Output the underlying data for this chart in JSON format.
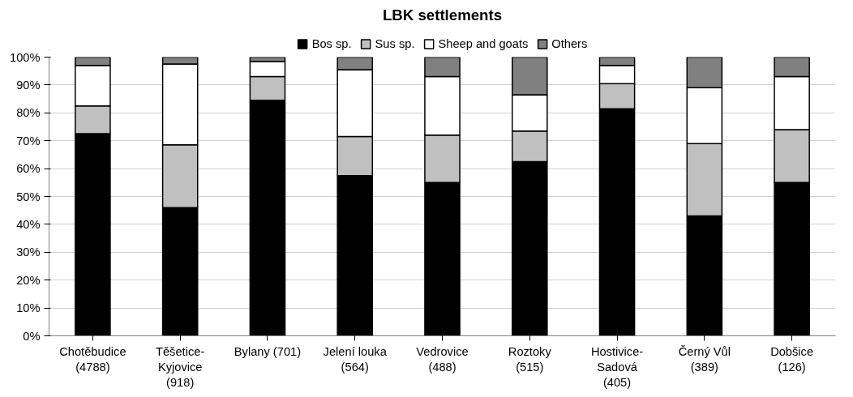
{
  "chart_data": {
    "type": "bar",
    "title": "LBK settlements",
    "stacked": true,
    "categories": [
      "Chotěbudice\n(4788)",
      "Těšetice-\nKyjovice\n(918)",
      "Bylany (701)",
      "Jelení louka\n(564)",
      "Vedrovice\n(488)",
      "Roztoky\n(515)",
      "Hostivice-\nSadová\n(405)",
      "Černý Vůl\n(389)",
      "Dobšice\n(126)"
    ],
    "series": [
      {
        "name": "Bos sp.",
        "color": "#000000",
        "values": [
          72.5,
          46,
          84.5,
          57.5,
          55,
          62.5,
          81.5,
          43,
          55
        ]
      },
      {
        "name": "Sus sp.",
        "color": "#c0c0c0",
        "values": [
          10,
          22.5,
          8.5,
          14,
          17,
          11,
          9,
          26,
          19
        ]
      },
      {
        "name": "Sheep and goats",
        "color": "#ffffff",
        "values": [
          14.5,
          29,
          5.5,
          24,
          21,
          13,
          6.5,
          20,
          19
        ]
      },
      {
        "name": "Others",
        "color": "#808080",
        "values": [
          3,
          2.5,
          1.5,
          4.5,
          7,
          13.5,
          3,
          11,
          7
        ]
      }
    ],
    "ylim": [
      0,
      100
    ],
    "yticks": [
      {
        "value": 0,
        "label": "0%"
      },
      {
        "value": 10,
        "label": "10%"
      },
      {
        "value": 20,
        "label": "20%"
      },
      {
        "value": 30,
        "label": "30%"
      },
      {
        "value": 40,
        "label": "40%"
      },
      {
        "value": 50,
        "label": "50%"
      },
      {
        "value": 60,
        "label": "60%"
      },
      {
        "value": 70,
        "label": "70%"
      },
      {
        "value": 80,
        "label": "80%"
      },
      {
        "value": 90,
        "label": "90%"
      },
      {
        "value": 100,
        "label": "100%"
      }
    ],
    "grid": "y",
    "legend": "top"
  }
}
